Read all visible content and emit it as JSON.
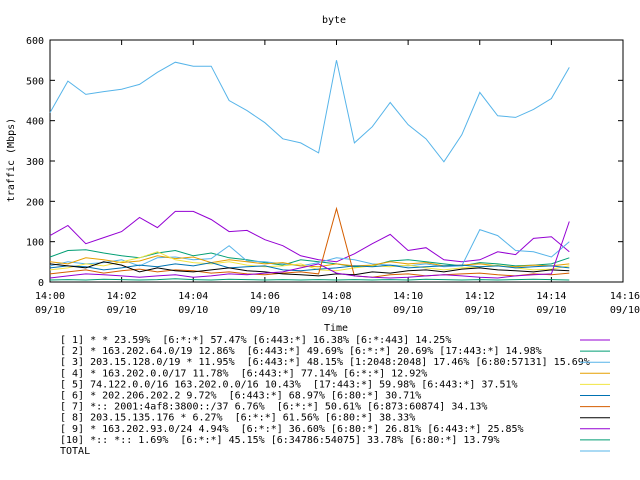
{
  "chart_data": {
    "type": "line",
    "title": "byte",
    "xlabel": "Time",
    "ylabel": "traffic (Mbps)",
    "ylim": [
      0,
      600
    ],
    "yticks": [
      0,
      100,
      200,
      300,
      400,
      500,
      600
    ],
    "xlim": [
      "14:00",
      "14:16"
    ],
    "xticks": [
      {
        "time": "14:00",
        "date": "09/10"
      },
      {
        "time": "14:02",
        "date": "09/10"
      },
      {
        "time": "14:04",
        "date": "09/10"
      },
      {
        "time": "14:06",
        "date": "09/10"
      },
      {
        "time": "14:08",
        "date": "09/10"
      },
      {
        "time": "14:10",
        "date": "09/10"
      },
      {
        "time": "14:12",
        "date": "09/10"
      },
      {
        "time": "14:14",
        "date": "09/10"
      },
      {
        "time": "14:16",
        "date": "09/10"
      }
    ],
    "grid": false,
    "legend_placement": "bottom",
    "x": [
      "14:00:00",
      "14:00:30",
      "14:01:00",
      "14:01:30",
      "14:02:00",
      "14:02:30",
      "14:03:00",
      "14:03:30",
      "14:04:00",
      "14:04:30",
      "14:05:00",
      "14:05:30",
      "14:06:00",
      "14:06:30",
      "14:07:00",
      "14:07:30",
      "14:08:00",
      "14:08:30",
      "14:09:00",
      "14:09:30",
      "14:10:00",
      "14:10:30",
      "14:11:00",
      "14:11:30",
      "14:12:00",
      "14:12:30",
      "14:13:00",
      "14:13:30",
      "14:14:00",
      "14:14:30"
    ],
    "series": [
      {
        "name": "[ 1] * * 23.59%  [6:*:*] 57.47% [6:443:*] 16.38% [6:*:443] 14.25%",
        "color": "#9400d3",
        "values": [
          115,
          140,
          95,
          110,
          125,
          160,
          135,
          175,
          175,
          155,
          125,
          128,
          105,
          90,
          65,
          55,
          50,
          70,
          95,
          118,
          78,
          85,
          55,
          50,
          55,
          75,
          68,
          108,
          112,
          75
        ]
      },
      {
        "name": "[ 2] * 163.202.64.0/19 12.86%  [6:443:*] 49.69% [6:*:*] 20.69% [17:443:*] 14.98%",
        "color": "#009e73",
        "values": [
          62,
          78,
          80,
          72,
          65,
          60,
          72,
          78,
          65,
          72,
          60,
          55,
          48,
          42,
          55,
          50,
          45,
          38,
          40,
          52,
          55,
          50,
          45,
          40,
          48,
          45,
          40,
          42,
          45,
          60
        ]
      },
      {
        "name": "[ 3] 203.15.128.0/19 * 11.95%  [6:443:*] 48.15% [1:2048:2048] 17.46% [6:80:57131] 15.69%",
        "color": "#56b4e9",
        "values": [
          40,
          50,
          45,
          48,
          55,
          40,
          60,
          62,
          55,
          58,
          90,
          52,
          50,
          45,
          40,
          48,
          60,
          55,
          45,
          42,
          40,
          45,
          38,
          40,
          130,
          115,
          78,
          75,
          62,
          100
        ]
      },
      {
        "name": "[ 4] * 163.202.0.0/17 11.78%  [6:443:*] 77.14% [6:*:*] 12.92%",
        "color": "#e69f00",
        "values": [
          50,
          45,
          60,
          55,
          48,
          52,
          65,
          58,
          62,
          48,
          55,
          50,
          45,
          48,
          40,
          38,
          45,
          40,
          42,
          50,
          45,
          48,
          40,
          42,
          45,
          40,
          38,
          42,
          40,
          45
        ]
      },
      {
        "name": "[ 5] 74.122.0.0/16 163.202.0.0/16 10.43%  [17:443:*] 59.98% [6:443:*] 37.51%",
        "color": "#f0e442",
        "values": [
          30,
          35,
          45,
          40,
          50,
          60,
          75,
          55,
          48,
          45,
          50,
          42,
          38,
          40,
          45,
          30,
          28,
          35,
          40,
          38,
          42,
          35,
          30,
          35,
          38,
          42,
          35,
          30,
          32,
          40
        ]
      },
      {
        "name": "[ 6] * 202.206.202.2 9.72%  [6:443:*] 68.97% [6:80:*] 30.71%",
        "color": "#0072b2",
        "values": [
          35,
          40,
          38,
          30,
          35,
          42,
          38,
          45,
          40,
          48,
          35,
          38,
          40,
          30,
          28,
          32,
          35,
          40,
          38,
          42,
          35,
          38,
          40,
          42,
          38,
          40,
          35,
          38,
          40,
          35
        ]
      },
      {
        "name": "[ 7] *:: 2001:4af8:3800::/37 6.76%  [6:*:*] 50.61% [6:873:60874] 34.13%",
        "color": "#d55e00",
        "values": [
          20,
          25,
          30,
          22,
          28,
          32,
          25,
          30,
          28,
          22,
          25,
          20,
          18,
          22,
          25,
          20,
          182,
          15,
          12,
          18,
          20,
          15,
          18,
          20,
          22,
          18,
          15,
          20,
          18,
          22
        ]
      },
      {
        "name": "[ 8] 203.15.135.176 * 6.27%  [6:*:*] 61.56% [6:80:*] 38.33%",
        "color": "#000000",
        "values": [
          45,
          40,
          35,
          50,
          42,
          25,
          35,
          28,
          25,
          30,
          35,
          28,
          25,
          20,
          18,
          15,
          20,
          18,
          25,
          22,
          28,
          30,
          25,
          32,
          35,
          30,
          28,
          25,
          30,
          28
        ]
      },
      {
        "name": "[ 9] * 163.202.93.0/24 4.94%  [6:*:*] 36.60% [6:80:*] 26.81% [6:443:*] 25.85%",
        "color": "#9400d3",
        "values": [
          10,
          15,
          20,
          18,
          15,
          12,
          15,
          18,
          12,
          15,
          20,
          18,
          22,
          25,
          35,
          45,
          22,
          15,
          12,
          10,
          12,
          15,
          18,
          15,
          12,
          10,
          15,
          18,
          20,
          150
        ]
      },
      {
        "name": "[10] *:: *:: 1.69%  [6:*:*] 45.15% [6:34786:54075] 33.78% [6:80:*] 13.79%",
        "color": "#009e73",
        "values": [
          5,
          6,
          5,
          7,
          6,
          5,
          6,
          8,
          6,
          5,
          7,
          6,
          5,
          6,
          5,
          6,
          5,
          6,
          5,
          6,
          5,
          7,
          6,
          5,
          6,
          5,
          6,
          7,
          6,
          5
        ]
      },
      {
        "name": "TOTAL",
        "color": "#56b4e9",
        "values": [
          420,
          498,
          465,
          472,
          478,
          490,
          520,
          545,
          535,
          535,
          450,
          425,
          395,
          355,
          345,
          320,
          550,
          345,
          385,
          445,
          390,
          355,
          298,
          365,
          470,
          412,
          408,
          428,
          455,
          532
        ]
      }
    ]
  }
}
